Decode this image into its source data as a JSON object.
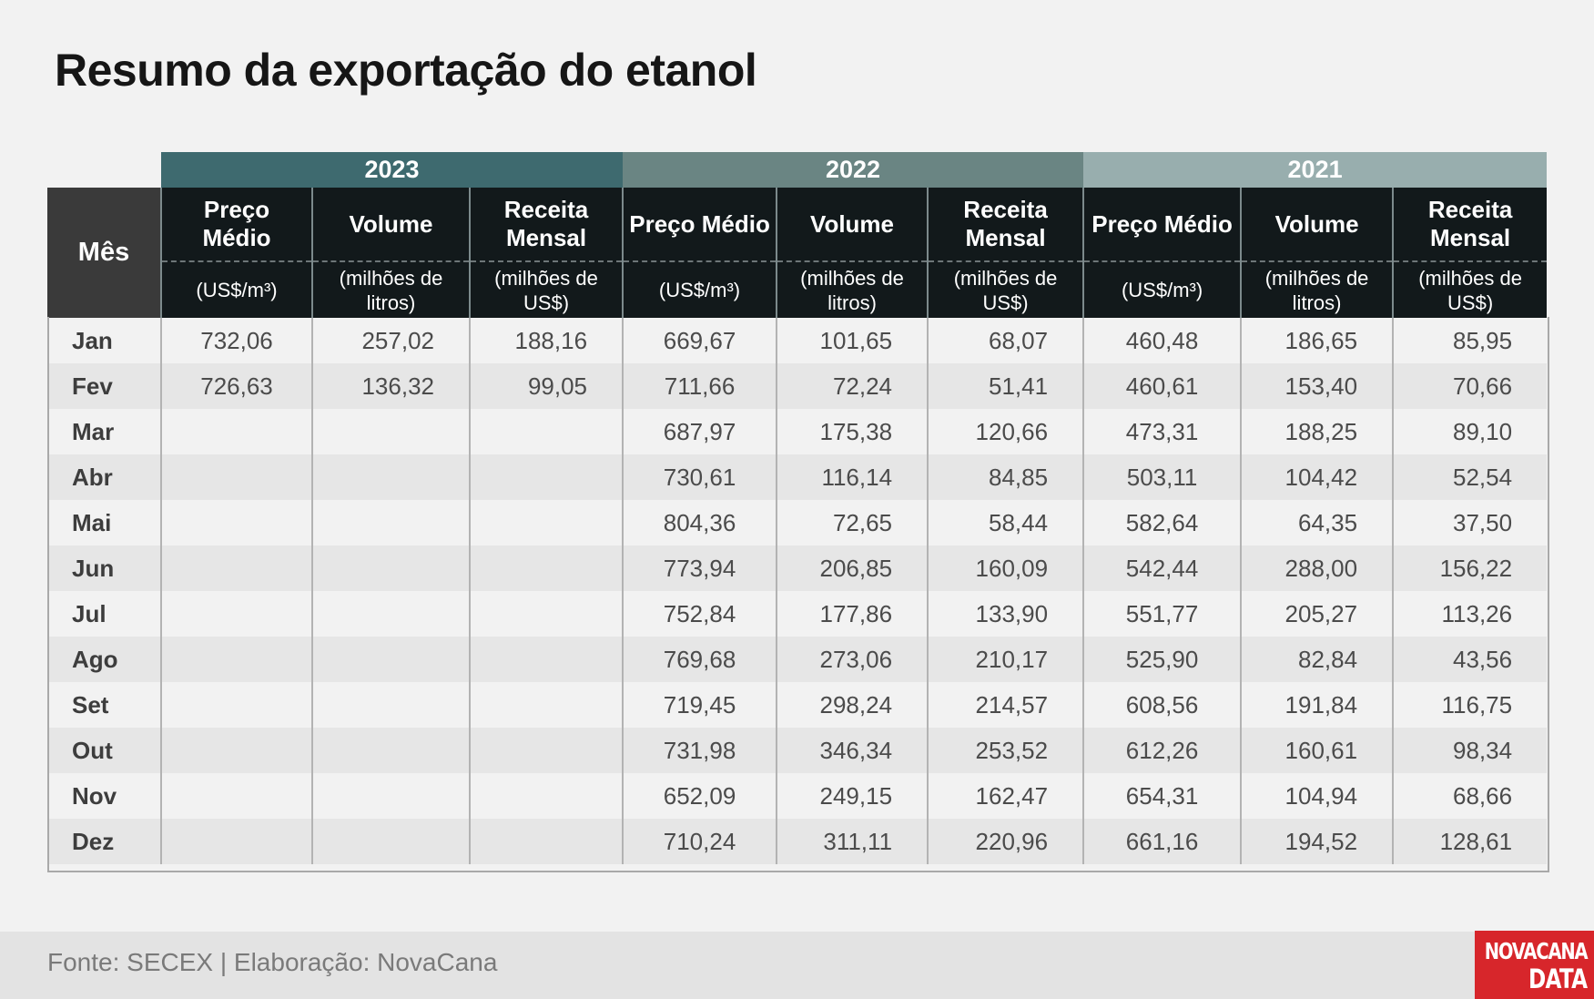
{
  "title": "Resumo da exportação do etanol",
  "footer": {
    "source": "Fonte: SECEX | Elaboração: NovaCana"
  },
  "logo": {
    "line1": "NOVACANA",
    "line2": "DATA",
    "color": "#d7262b"
  },
  "colors": {
    "year_2023": "#3e6a6f",
    "year_2022": "#6a8583",
    "year_2021": "#98aeae",
    "header_bg": "#12191b",
    "month_header_bg": "#3a3a3a"
  },
  "chart_data": {
    "type": "table",
    "title": "Resumo da exportação do etanol",
    "month_header": "Mês",
    "years": [
      "2023",
      "2022",
      "2021"
    ],
    "column_headers": [
      {
        "name": "Preço Médio",
        "unit": "(US$/m³)"
      },
      {
        "name": "Volume",
        "unit": "(milhões de litros)"
      },
      {
        "name": "Receita Mensal",
        "unit": "(milhões de US$)"
      }
    ],
    "rows": [
      {
        "month": "Jan",
        "values": [
          "732,06",
          "257,02",
          "188,16",
          "669,67",
          "101,65",
          "68,07",
          "460,48",
          "186,65",
          "85,95"
        ]
      },
      {
        "month": "Fev",
        "values": [
          "726,63",
          "136,32",
          "99,05",
          "711,66",
          "72,24",
          "51,41",
          "460,61",
          "153,40",
          "70,66"
        ]
      },
      {
        "month": "Mar",
        "values": [
          "",
          "",
          "",
          "687,97",
          "175,38",
          "120,66",
          "473,31",
          "188,25",
          "89,10"
        ]
      },
      {
        "month": "Abr",
        "values": [
          "",
          "",
          "",
          "730,61",
          "116,14",
          "84,85",
          "503,11",
          "104,42",
          "52,54"
        ]
      },
      {
        "month": "Mai",
        "values": [
          "",
          "",
          "",
          "804,36",
          "72,65",
          "58,44",
          "582,64",
          "64,35",
          "37,50"
        ]
      },
      {
        "month": "Jun",
        "values": [
          "",
          "",
          "",
          "773,94",
          "206,85",
          "160,09",
          "542,44",
          "288,00",
          "156,22"
        ]
      },
      {
        "month": "Jul",
        "values": [
          "",
          "",
          "",
          "752,84",
          "177,86",
          "133,90",
          "551,77",
          "205,27",
          "113,26"
        ]
      },
      {
        "month": "Ago",
        "values": [
          "",
          "",
          "",
          "769,68",
          "273,06",
          "210,17",
          "525,90",
          "82,84",
          "43,56"
        ]
      },
      {
        "month": "Set",
        "values": [
          "",
          "",
          "",
          "719,45",
          "298,24",
          "214,57",
          "608,56",
          "191,84",
          "116,75"
        ]
      },
      {
        "month": "Out",
        "values": [
          "",
          "",
          "",
          "731,98",
          "346,34",
          "253,52",
          "612,26",
          "160,61",
          "98,34"
        ]
      },
      {
        "month": "Nov",
        "values": [
          "",
          "",
          "",
          "652,09",
          "249,15",
          "162,47",
          "654,31",
          "104,94",
          "68,66"
        ]
      },
      {
        "month": "Dez",
        "values": [
          "",
          "",
          "",
          "710,24",
          "311,11",
          "220,96",
          "661,16",
          "194,52",
          "128,61"
        ]
      }
    ]
  }
}
